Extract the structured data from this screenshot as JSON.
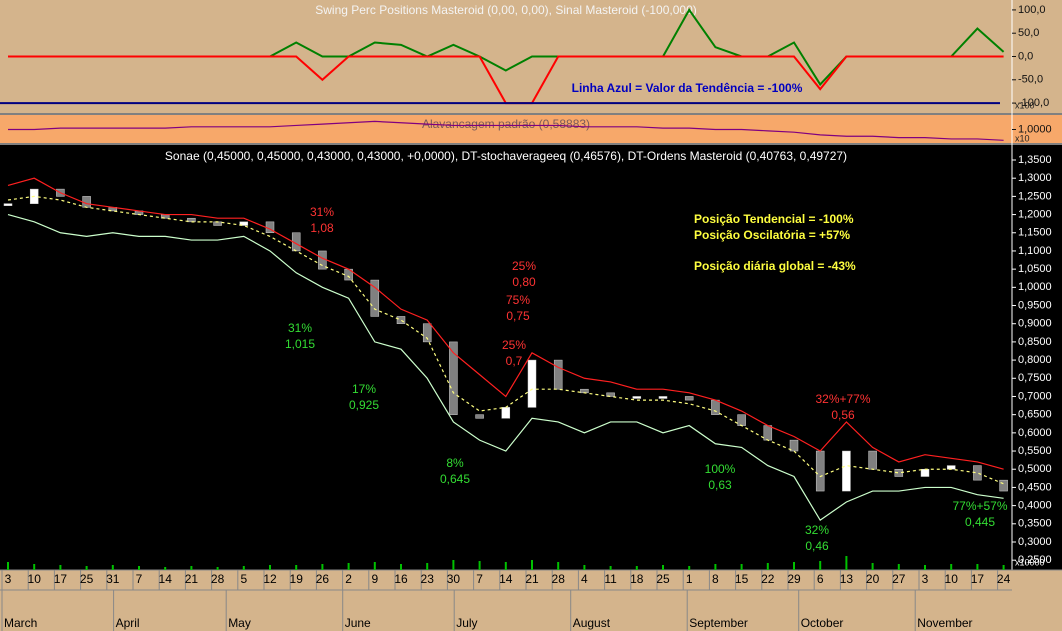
{
  "chart_data": [
    {
      "type": "line",
      "title": "Swing Perc Positions Masteroid (0,00, 0,00), Sinal Masteroid (-100,000)",
      "annotation": "Linha Azul = Valor da Tendência = -100%",
      "scale_note": "x100",
      "ylim": [
        -117,
        117
      ],
      "yticks": [
        {
          "value": 100,
          "label": "100,0"
        },
        {
          "value": 50,
          "label": "50,0"
        },
        {
          "value": 0,
          "label": "0,0"
        },
        {
          "value": -50,
          "label": "-50,0"
        },
        {
          "value": -100,
          "label": "-100,0"
        }
      ],
      "series": [
        {
          "color": "#008000",
          "values": [
            0,
            0,
            0,
            0,
            0,
            0,
            0,
            0,
            0,
            0,
            0,
            30,
            0,
            0,
            30,
            25,
            0,
            25,
            0,
            -30,
            0,
            0,
            0,
            0,
            0,
            0,
            100,
            20,
            0,
            0,
            30,
            -60,
            0,
            0,
            0,
            0,
            0,
            60,
            10
          ]
        },
        {
          "color": "#ff0000",
          "values": [
            0,
            0,
            0,
            0,
            0,
            0,
            0,
            0,
            0,
            0,
            0,
            0,
            -50,
            0,
            0,
            0,
            0,
            0,
            0,
            -100,
            -100,
            0,
            0,
            0,
            0,
            0,
            0,
            0,
            0,
            0,
            0,
            -70,
            0,
            0,
            0,
            0,
            0,
            0,
            0
          ]
        },
        {
          "color": "#000080",
          "values": [
            -100
          ]
        }
      ]
    },
    {
      "type": "line",
      "title": "Alavancagem padrão (0,58883)",
      "scale_note": "x10",
      "ylim": [
        0.9,
        1.1
      ],
      "yticks": [
        {
          "value": 1,
          "label": "1,0000"
        }
      ],
      "series": [
        {
          "color": "#800080",
          "values": [
            1.0,
            1.0,
            1.01,
            1.01,
            1.01,
            1.01,
            1.01,
            1.02,
            1.02,
            1.02,
            1.02,
            1.03,
            1.04,
            1.05,
            1.06,
            1.05,
            1.04,
            1.03,
            1.03,
            1.03,
            1.03,
            1.03,
            1.02,
            1.02,
            1.02,
            1.01,
            1.01,
            1.0,
            1.0,
            0.99,
            0.98,
            0.96,
            0.95,
            0.95,
            0.94,
            0.94,
            0.93,
            0.93,
            0.92
          ]
        }
      ]
    },
    {
      "type": "line",
      "title": "Sonae (0,45000, 0,45000, 0,43000, 0,43000, +0,0000), DT-stochaverageeq (0,46576), DT-Ordens Masteroid (0,40763, 0,49727)",
      "categories": [
        "3",
        "10",
        "17",
        "25",
        "31",
        "7",
        "14",
        "21",
        "28",
        "5",
        "12",
        "19",
        "26",
        "2",
        "9",
        "16",
        "23",
        "30",
        "7",
        "14",
        "21",
        "28",
        "4",
        "11",
        "18",
        "25",
        "1",
        "8",
        "15",
        "22",
        "29",
        "6",
        "13",
        "20",
        "27",
        "3",
        "10",
        "17",
        "24"
      ],
      "months": [
        "March",
        "April",
        "May",
        "June",
        "July",
        "August",
        "September",
        "October",
        "November"
      ],
      "ylim": [
        0.223,
        1.383
      ],
      "yticks": [
        {
          "value": 1.35,
          "label": "1,3500"
        },
        {
          "value": 1.3,
          "label": "1,3000"
        },
        {
          "value": 1.25,
          "label": "1,2500"
        },
        {
          "value": 1.2,
          "label": "1,2000"
        },
        {
          "value": 1.15,
          "label": "1,1500"
        },
        {
          "value": 1.1,
          "label": "1,1000"
        },
        {
          "value": 1.05,
          "label": "1,0500"
        },
        {
          "value": 1.0,
          "label": "1,0000"
        },
        {
          "value": 0.95,
          "label": "0,9500"
        },
        {
          "value": 0.9,
          "label": "0,9000"
        },
        {
          "value": 0.85,
          "label": "0,8500"
        },
        {
          "value": 0.8,
          "label": "0,8000"
        },
        {
          "value": 0.75,
          "label": "0,7500"
        },
        {
          "value": 0.7,
          "label": "0,7000"
        },
        {
          "value": 0.65,
          "label": "0,6500"
        },
        {
          "value": 0.6,
          "label": "0,6000"
        },
        {
          "value": 0.55,
          "label": "0,5500"
        },
        {
          "value": 0.5,
          "label": "0,5000"
        },
        {
          "value": 0.45,
          "label": "0,4500"
        },
        {
          "value": 0.4,
          "label": "0,4000"
        },
        {
          "value": 0.35,
          "label": "0,3500"
        },
        {
          "value": 0.3,
          "label": "0,3000"
        },
        {
          "value": 0.25,
          "label": "0,2500"
        }
      ],
      "series": [
        {
          "style": "candles",
          "color": "#d0d0d0",
          "values": [
            1.23,
            1.27,
            1.25,
            1.22,
            1.21,
            1.2,
            1.19,
            1.18,
            1.17,
            1.18,
            1.15,
            1.1,
            1.05,
            1.02,
            0.92,
            0.9,
            0.85,
            0.65,
            0.64,
            0.67,
            0.8,
            0.72,
            0.71,
            0.7,
            0.7,
            0.7,
            0.69,
            0.65,
            0.62,
            0.58,
            0.55,
            0.44,
            0.55,
            0.5,
            0.48,
            0.5,
            0.51,
            0.47,
            0.44
          ]
        },
        {
          "style": "line",
          "color": "#ff2020",
          "values": [
            1.28,
            1.3,
            1.26,
            1.23,
            1.22,
            1.21,
            1.2,
            1.2,
            1.19,
            1.19,
            1.16,
            1.12,
            1.08,
            1.05,
            1.0,
            0.94,
            0.91,
            0.82,
            0.76,
            0.7,
            0.82,
            0.78,
            0.75,
            0.74,
            0.72,
            0.72,
            0.71,
            0.69,
            0.66,
            0.62,
            0.59,
            0.55,
            0.63,
            0.56,
            0.52,
            0.54,
            0.53,
            0.52,
            0.5
          ]
        },
        {
          "style": "line",
          "color": "#ccffcc",
          "values": [
            1.2,
            1.18,
            1.15,
            1.14,
            1.15,
            1.14,
            1.14,
            1.13,
            1.13,
            1.14,
            1.1,
            1.04,
            1.0,
            0.97,
            0.85,
            0.83,
            0.75,
            0.63,
            0.58,
            0.55,
            0.64,
            0.63,
            0.6,
            0.63,
            0.63,
            0.6,
            0.62,
            0.57,
            0.56,
            0.51,
            0.48,
            0.36,
            0.41,
            0.44,
            0.44,
            0.45,
            0.45,
            0.43,
            0.42
          ]
        },
        {
          "style": "dashed",
          "color": "#ffff80",
          "values": [
            1.24,
            1.25,
            1.24,
            1.22,
            1.21,
            1.2,
            1.19,
            1.18,
            1.18,
            1.17,
            1.14,
            1.1,
            1.06,
            1.03,
            0.94,
            0.91,
            0.86,
            0.71,
            0.66,
            0.67,
            0.72,
            0.72,
            0.71,
            0.7,
            0.69,
            0.69,
            0.68,
            0.66,
            0.62,
            0.58,
            0.55,
            0.48,
            0.51,
            0.5,
            0.49,
            0.5,
            0.5,
            0.49,
            0.46
          ]
        }
      ],
      "annotations": [
        {
          "color": "#ff3333",
          "lines": [
            "31%",
            "1,08"
          ]
        },
        {
          "color": "#33dd33",
          "lines": [
            "31%",
            "1,015"
          ]
        },
        {
          "color": "#33dd33",
          "lines": [
            "17%",
            "0,925"
          ]
        },
        {
          "color": "#33dd33",
          "lines": [
            "8%",
            "0,645"
          ]
        },
        {
          "color": "#ff3333",
          "lines": [
            "25%",
            "0,80"
          ]
        },
        {
          "color": "#ff3333",
          "lines": [
            "75%",
            "0,75"
          ]
        },
        {
          "color": "#ff3333",
          "lines": [
            "25%",
            "0,7"
          ]
        },
        {
          "color": "#33dd33",
          "lines": [
            "100%",
            "0,63"
          ]
        },
        {
          "color": "#33dd33",
          "lines": [
            "32%",
            "0,46"
          ]
        },
        {
          "color": "#ff3333",
          "lines": [
            "32%+77%",
            "0,56"
          ]
        },
        {
          "color": "#33dd33",
          "lines": [
            "77%+57%",
            "0,445"
          ]
        }
      ],
      "info_texts": [
        "Posição Tendencial = -100%",
        "Posição Oscilatória = +57%",
        "Posição diária global = -43%"
      ],
      "volume": {
        "color": "#00c000",
        "scale_note": "x10000",
        "ylim": [
          0,
          40
        ],
        "values": [
          8,
          6,
          5,
          4,
          5,
          4,
          3,
          4,
          3,
          4,
          5,
          5,
          6,
          7,
          8,
          6,
          7,
          10,
          9,
          8,
          10,
          8,
          5,
          4,
          4,
          5,
          4,
          6,
          6,
          7,
          8,
          9,
          14,
          7,
          6,
          5,
          6,
          6,
          5
        ]
      }
    }
  ]
}
